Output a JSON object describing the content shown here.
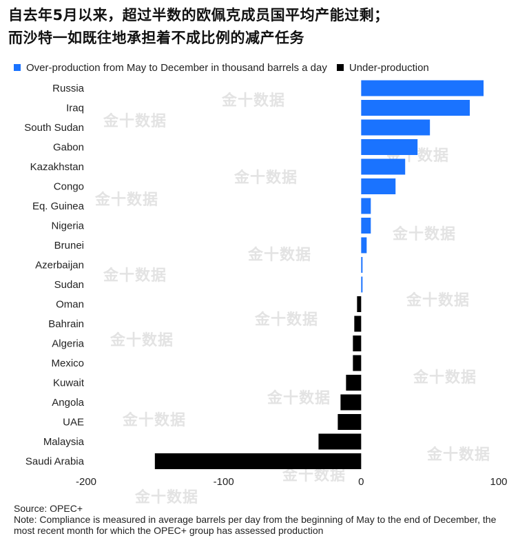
{
  "title_line1": "自去年5月以来，超过半数的欧佩克成员国平均产能过剩；",
  "title_line2": "而沙特一如既往地承担着不成比例的减产任务",
  "watermark": "金十数据",
  "source": "Source: OPEC+",
  "note": "Note: Compliance is measured in average barrels per day from the beginning of May to the end of December, the most recent month for which the OPEC+ group has assessed production",
  "colors": {
    "over": "#1a73ff",
    "under": "#000000"
  },
  "chart_data": {
    "type": "bar",
    "orientation": "horizontal",
    "title": "自去年5月以来，超过半数的欧佩克成员国平均产能过剩；而沙特一如既往地承担着不成比例的减产任务",
    "xlabel": "",
    "ylabel": "",
    "xlim": [
      -200,
      100
    ],
    "xticks": [
      -200,
      -100,
      0,
      100
    ],
    "legend_position": "top-left",
    "grid": false,
    "series": [
      {
        "name": "Over-production from May to December in thousand barrels a day",
        "color": "#1a73ff"
      },
      {
        "name": "Under-production",
        "color": "#000000"
      }
    ],
    "categories": [
      "Russia",
      "Iraq",
      "South Sudan",
      "Gabon",
      "Kazakhstan",
      "Congo",
      "Eq. Guinea",
      "Nigeria",
      "Brunei",
      "Azerbaijan",
      "Sudan",
      "Oman",
      "Bahrain",
      "Algeria",
      "Mexico",
      "Kuwait",
      "Angola",
      "UAE",
      "Malaysia",
      "Saudi Arabia"
    ],
    "values": [
      89,
      79,
      50,
      41,
      32,
      25,
      7,
      7,
      4,
      1,
      1,
      -3,
      -5,
      -6,
      -6,
      -11,
      -15,
      -17,
      -31,
      -150
    ]
  }
}
